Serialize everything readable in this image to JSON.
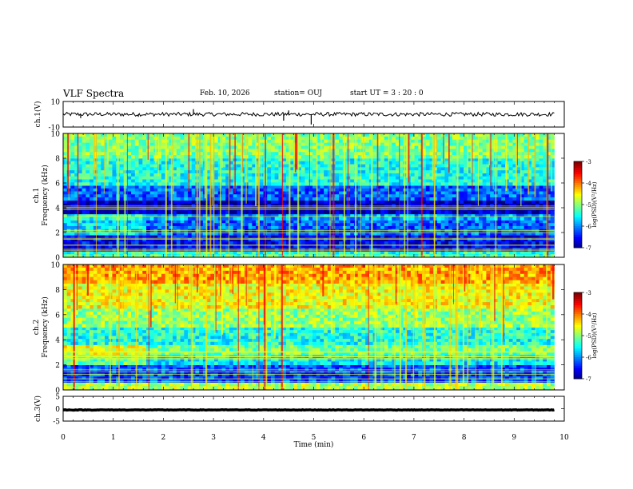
{
  "header": {
    "title": "VLF Spectra",
    "date": "Feb. 10, 2026",
    "station": "station= OUJ",
    "start": "start  UT  =   3  : 20 : 0"
  },
  "chart_data": [
    {
      "type": "line",
      "id": "ch1_waveform",
      "ylabel": "ch.1(V)",
      "ylim": [
        -10,
        10
      ],
      "y_ticks": [
        10,
        -10
      ],
      "x_range_min": [
        0,
        9.8
      ],
      "baseline": 0,
      "noise_amplitude": 1.5,
      "spikes": [
        {
          "t": 0.35,
          "v": -3
        },
        {
          "t": 1.5,
          "v": -2
        },
        {
          "t": 2.6,
          "v": 4
        },
        {
          "t": 4.4,
          "v": -5
        },
        {
          "t": 4.5,
          "v": 3
        },
        {
          "t": 4.95,
          "v": -8
        }
      ]
    },
    {
      "type": "heatmap",
      "id": "ch1_spectrogram",
      "ylabel": "ch.1\nFrequency (kHz)",
      "ylabel_lines": [
        "ch.1",
        "Frequency (kHz)"
      ],
      "ylim": [
        0,
        10
      ],
      "y_ticks": [
        "0",
        "2",
        "4",
        "6",
        "8",
        "10"
      ],
      "x_range_min": [
        0,
        9.8
      ],
      "colorbar": {
        "label": "log(PSD)(V²/Hz)",
        "range": [
          -7,
          -3
        ],
        "ticks": [
          "-3",
          "-4",
          "-5",
          "-6",
          "-7"
        ]
      },
      "bands_khz": [
        {
          "lo": 0.0,
          "hi": 0.5,
          "level": 0.42
        },
        {
          "lo": 0.5,
          "hi": 1.8,
          "level": 0.12
        },
        {
          "lo": 1.8,
          "hi": 3.0,
          "level": 0.22
        },
        {
          "lo": 3.0,
          "hi": 3.5,
          "level": 0.28
        },
        {
          "lo": 3.5,
          "hi": 4.6,
          "level": 0.05
        },
        {
          "lo": 4.6,
          "hi": 5.8,
          "level": 0.22
        },
        {
          "lo": 5.8,
          "hi": 8.0,
          "level": 0.4
        },
        {
          "lo": 8.0,
          "hi": 10.0,
          "level": 0.5
        }
      ],
      "transition_min": 1.65
    },
    {
      "type": "heatmap",
      "id": "ch2_spectrogram",
      "ylabel": "ch.2\nFrequency (kHz)",
      "ylabel_lines": [
        "ch.2",
        "Frequency (kHz)"
      ],
      "ylim": [
        0,
        10
      ],
      "y_ticks": [
        "0",
        "2",
        "4",
        "6",
        "8",
        "10"
      ],
      "x_range_min": [
        0,
        9.8
      ],
      "colorbar": {
        "label": "log(PSD)(V²/Hz)",
        "range": [
          -7,
          -3
        ],
        "ticks": [
          "-3",
          "-4",
          "-5",
          "-6",
          "-7"
        ]
      },
      "bands_khz": [
        {
          "lo": 0.0,
          "hi": 0.6,
          "level": 0.55
        },
        {
          "lo": 0.6,
          "hi": 2.0,
          "level": 0.2
        },
        {
          "lo": 2.0,
          "hi": 2.8,
          "level": 0.35
        },
        {
          "lo": 2.8,
          "hi": 3.6,
          "level": 0.48
        },
        {
          "lo": 3.6,
          "hi": 5.0,
          "level": 0.4
        },
        {
          "lo": 5.0,
          "hi": 6.5,
          "level": 0.52
        },
        {
          "lo": 6.5,
          "hi": 8.5,
          "level": 0.62
        },
        {
          "lo": 8.5,
          "hi": 10.0,
          "level": 0.72
        }
      ],
      "transition_min": 1.65
    },
    {
      "type": "line",
      "id": "ch3_waveform",
      "ylabel": "ch.3(V)",
      "ylim": [
        -5,
        5
      ],
      "y_ticks": [
        5,
        0,
        -5
      ],
      "x_range_min": [
        0,
        9.8
      ],
      "baseline": -0.5,
      "noise_amplitude": 0.1,
      "spikes": []
    }
  ],
  "x_axis": {
    "label": "Time  (min)",
    "xlim": [
      0,
      10
    ],
    "ticks": [
      "0",
      "1",
      "2",
      "3",
      "4",
      "5",
      "6",
      "7",
      "8",
      "9",
      "10"
    ]
  }
}
